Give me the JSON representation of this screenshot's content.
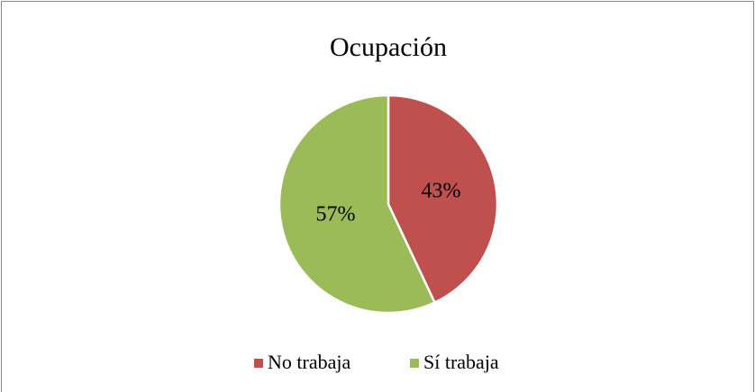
{
  "chart_data": {
    "type": "pie",
    "title": "Ocupación",
    "categories": [
      "No trabaja",
      "Sí trabaja"
    ],
    "values": [
      43,
      57
    ],
    "value_labels": [
      "43%",
      "57%"
    ],
    "colors": [
      "#c0504d",
      "#9bbb59"
    ],
    "legend": "bottom"
  }
}
